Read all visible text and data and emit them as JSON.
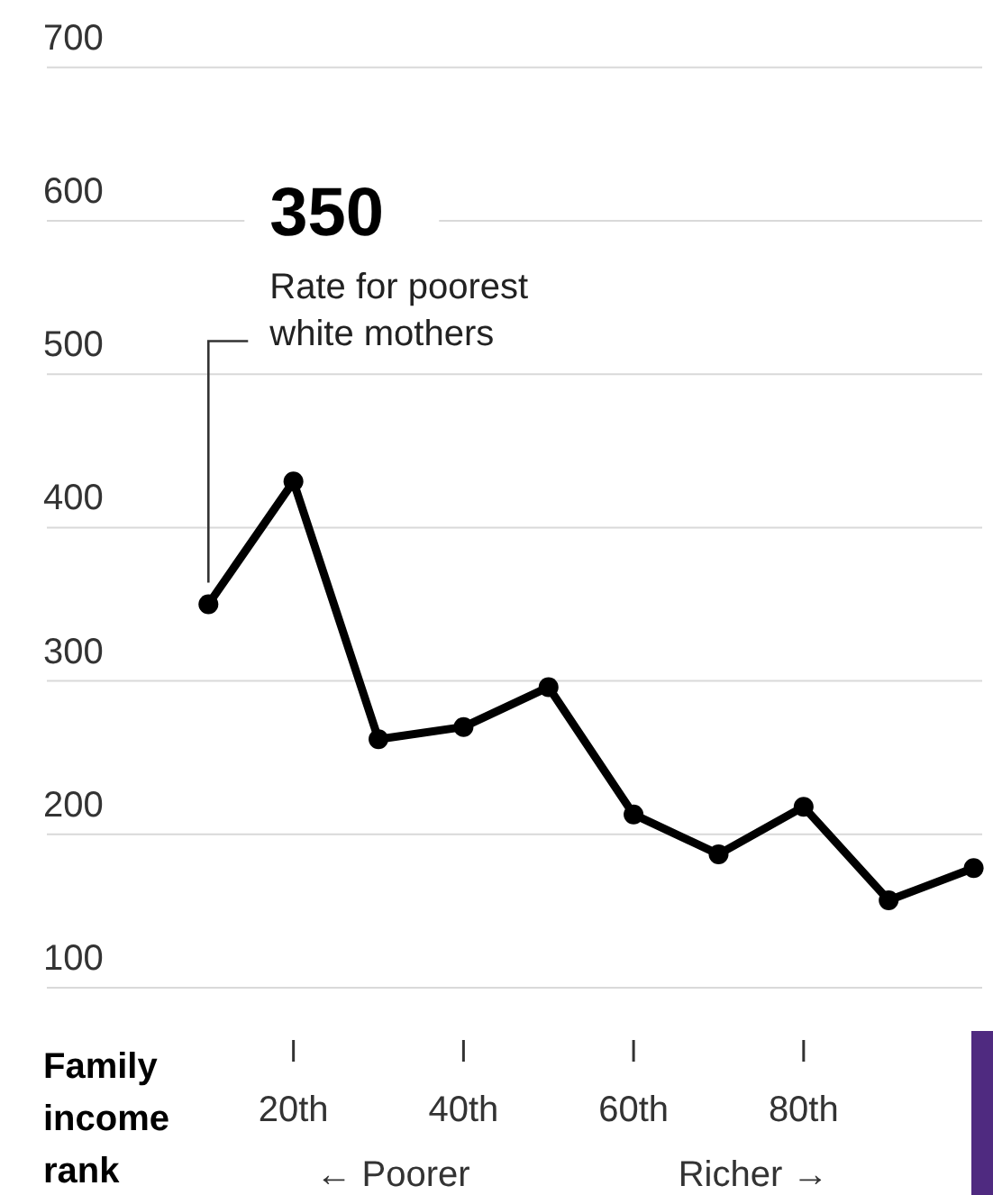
{
  "chart_data": {
    "type": "line",
    "xlabel": "Family income rank",
    "x": [
      10,
      20,
      30,
      40,
      50,
      60,
      70,
      80,
      90,
      100
    ],
    "series": [
      {
        "color": "#000000",
        "values": [
          350,
          430,
          262,
          270,
          296,
          213,
          187,
          218,
          157,
          178
        ]
      }
    ],
    "xlim": [
      -9,
      101
    ],
    "xticks": [
      {
        "value": 20,
        "label": "20th"
      },
      {
        "value": 40,
        "label": "40th"
      },
      {
        "value": 60,
        "label": "60th"
      },
      {
        "value": 80,
        "label": "80th"
      }
    ],
    "ylim": [
      100,
      700
    ],
    "yticks": [
      100,
      200,
      300,
      400,
      500,
      600,
      700
    ],
    "grid": "y",
    "marker": "circle",
    "line_style": "solid",
    "annotations": [
      "350",
      "Rate for poorest white mothers",
      "← Poorer",
      "Richer →"
    ]
  }
}
